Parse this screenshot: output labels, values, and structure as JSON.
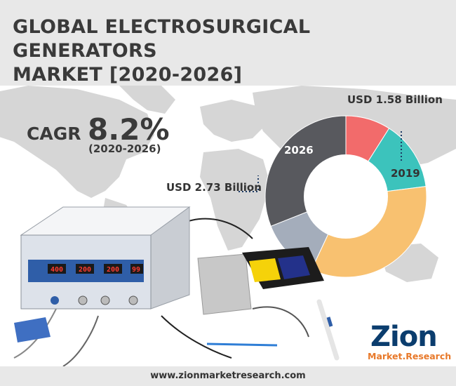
{
  "header": {
    "title_line1": "GLOBAL ELECTROSURGICAL GENERATORS",
    "title_line2": "MARKET [2020-2026]"
  },
  "cagr": {
    "label": "CAGR",
    "value": "8.2%",
    "period": "(2020-2026)"
  },
  "device_display": {
    "readouts": [
      "400",
      "200",
      "200",
      "99"
    ]
  },
  "chart_data": {
    "type": "pie",
    "variant": "donut",
    "title": "",
    "rings": [
      {
        "year": "2019",
        "label": "USD 1.58 Billion",
        "value": 1.58
      },
      {
        "year": "2026",
        "label": "USD 2.73 Billion",
        "value": 2.73
      }
    ],
    "slices": [
      {
        "color": "#f26b6b",
        "share": 0.09
      },
      {
        "color": "#3cc3bc",
        "share": 0.14
      },
      {
        "color": "#f8c170",
        "share": 0.34
      },
      {
        "color": "#a4adbb",
        "share": 0.12
      },
      {
        "color": "#58595e",
        "share": 0.31
      }
    ],
    "annotations": {
      "usd_2019": "USD 1.58 Billion",
      "year_2019": "2019",
      "usd_2026": "USD 2.73 Billion",
      "year_2026": "2026"
    },
    "legend": "none"
  },
  "logo": {
    "name": "Zion",
    "sub": "Market.Research"
  },
  "footer": {
    "url": "www.zionmarketresearch.com"
  },
  "colors": {
    "header_bg": "#e8e8e8",
    "title_text": "#3a3a3a",
    "map_gray": "#d3d3d3",
    "logo_blue": "#0b3d6e",
    "logo_orange": "#e8792a"
  }
}
